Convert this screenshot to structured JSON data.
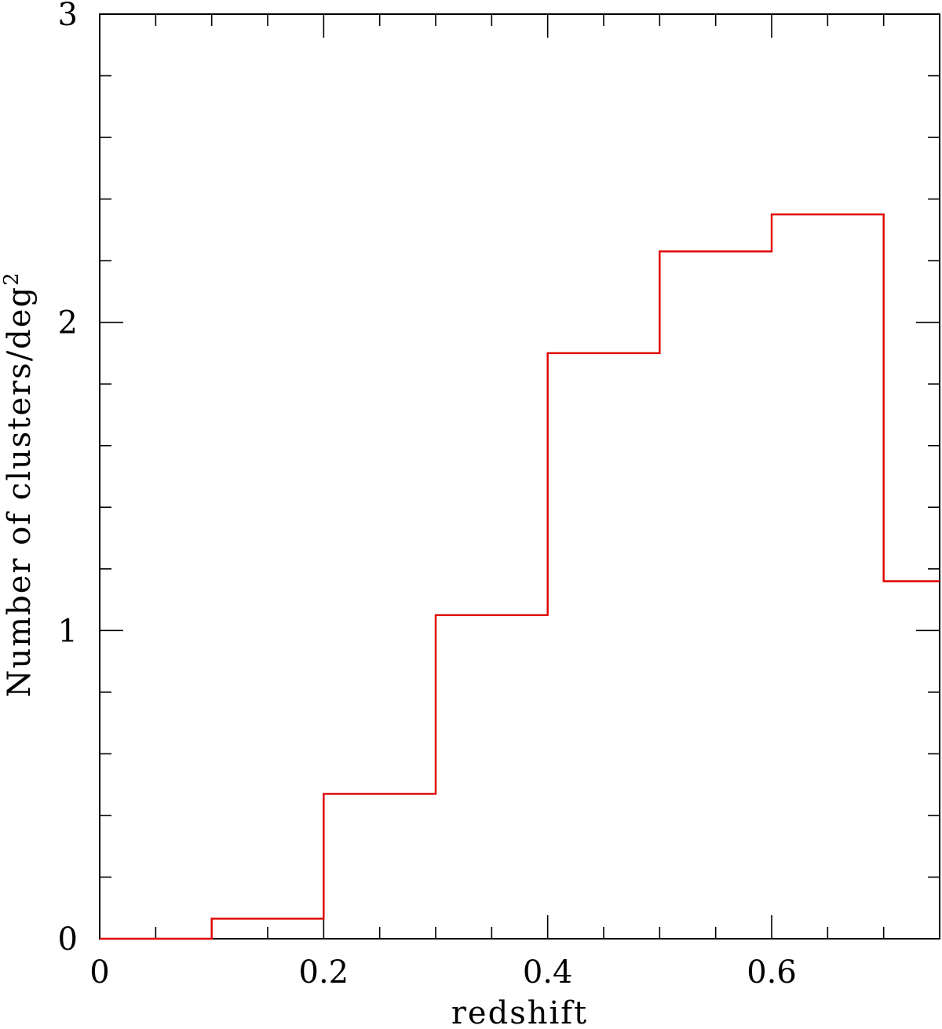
{
  "chart_data": {
    "type": "bar",
    "style": "step-histogram",
    "xlabel": "redshift",
    "ylabel": "Number of clusters/deg",
    "ylabel_superscript": "2",
    "bin_edges": [
      0,
      0.1,
      0.2,
      0.3,
      0.4,
      0.5,
      0.6,
      0.7,
      0.75
    ],
    "values": [
      0.0,
      0.065,
      0.47,
      1.05,
      1.9,
      2.23,
      2.35,
      1.16
    ],
    "xlim": [
      0,
      0.75
    ],
    "ylim": [
      0,
      3
    ],
    "x_major_ticks": [
      0,
      0.2,
      0.4,
      0.6
    ],
    "x_tick_labels": [
      "0",
      "0.2",
      "0.4",
      "0.6"
    ],
    "x_minor_step": 0.05,
    "y_major_ticks": [
      0,
      1,
      2,
      3
    ],
    "y_tick_labels": [
      "0",
      "1",
      "2",
      "3"
    ],
    "y_minor_step": 0.2,
    "line_color": "#e00000",
    "grid": false
  }
}
